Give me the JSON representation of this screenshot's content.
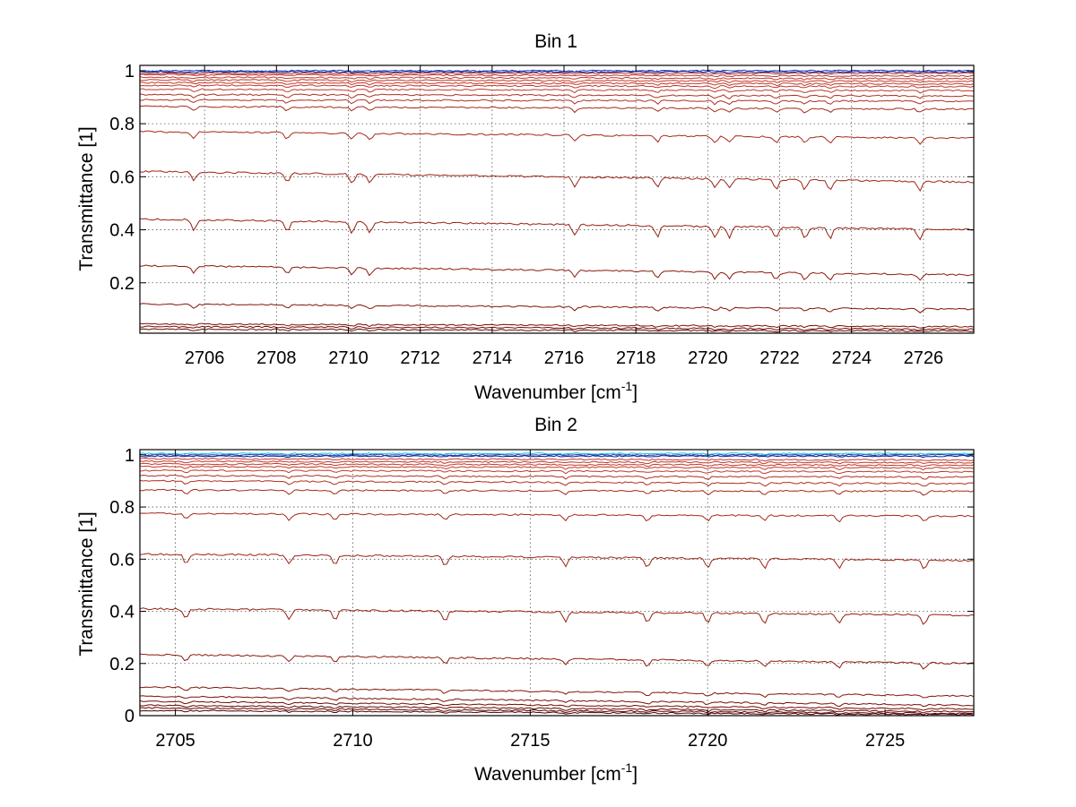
{
  "figure": {
    "panels": [
      {
        "title": "Bin 1",
        "xlabel_main": "Wavenumber [cm",
        "xlabel_sup": "-1",
        "xlabel_end": "]",
        "ylabel": "Transmittance [1]"
      },
      {
        "title": "Bin 2",
        "xlabel_main": "Wavenumber [cm",
        "xlabel_sup": "-1",
        "xlabel_end": "]",
        "ylabel": "Transmittance [1]"
      }
    ]
  },
  "chart_data": [
    {
      "type": "line",
      "title": "Bin 1",
      "xlabel": "Wavenumber [cm^-1]",
      "ylabel": "Transmittance [1]",
      "xlim": [
        2704.2,
        2727.4
      ],
      "ylim": [
        0.01,
        1.02
      ],
      "grid": true,
      "xticks": [
        2706,
        2708,
        2710,
        2712,
        2714,
        2716,
        2718,
        2720,
        2722,
        2724,
        2726
      ],
      "xtick_labels": [
        "2706",
        "2708",
        "2710",
        "2712",
        "2714",
        "2716",
        "2718",
        "2720",
        "2722",
        "2724",
        "2726"
      ],
      "yticks": [
        0.2,
        0.4,
        0.6,
        0.8,
        1
      ],
      "ytick_labels": [
        "0.2",
        "0.4",
        "0.6",
        "0.8",
        "1"
      ],
      "absorption_lines": [
        2705.7,
        2708.3,
        2710.1,
        2710.6,
        2716.3,
        2718.6,
        2720.2,
        2720.6,
        2721.9,
        2722.7,
        2723.4,
        2725.9
      ],
      "series": [
        {
          "values": [
            1.0,
            1.0
          ],
          "color": "#1f3fbf"
        },
        {
          "values": [
            0.995,
            0.995
          ],
          "color": "#0a1a99"
        },
        {
          "values": [
            0.99,
            0.99
          ],
          "color": "#c0392b"
        },
        {
          "values": [
            0.985,
            0.98
          ],
          "color": "#c0392b"
        },
        {
          "values": [
            0.975,
            0.97
          ],
          "color": "#c0392b"
        },
        {
          "values": [
            0.965,
            0.96
          ],
          "color": "#c0392b"
        },
        {
          "values": [
            0.955,
            0.95
          ],
          "color": "#c0392b"
        },
        {
          "values": [
            0.945,
            0.94
          ],
          "color": "#c0392b"
        },
        {
          "values": [
            0.93,
            0.925
          ],
          "color": "#c0392b"
        },
        {
          "values": [
            0.91,
            0.905
          ],
          "color": "#b03020"
        },
        {
          "values": [
            0.89,
            0.885
          ],
          "color": "#b03020"
        },
        {
          "values": [
            0.865,
            0.855
          ],
          "color": "#a52a1a"
        },
        {
          "values": [
            0.77,
            0.745
          ],
          "color": "#a52a1a"
        },
        {
          "values": [
            0.62,
            0.58
          ],
          "color": "#9c2415"
        },
        {
          "values": [
            0.44,
            0.4
          ],
          "color": "#942010"
        },
        {
          "values": [
            0.265,
            0.23
          ],
          "color": "#8b1a0c"
        },
        {
          "values": [
            0.12,
            0.1
          ],
          "color": "#821508"
        },
        {
          "values": [
            0.045,
            0.035
          ],
          "color": "#7a1005"
        },
        {
          "values": [
            0.035,
            0.025
          ],
          "color": "#700b03"
        },
        {
          "values": [
            0.025,
            0.018
          ],
          "color": "#650500"
        }
      ]
    },
    {
      "type": "line",
      "title": "Bin 2",
      "xlabel": "Wavenumber [cm^-1]",
      "ylabel": "Transmittance [1]",
      "xlim": [
        2704.0,
        2727.5
      ],
      "ylim": [
        0,
        1.02
      ],
      "grid": true,
      "xticks": [
        2705,
        2710,
        2715,
        2720,
        2725
      ],
      "xtick_labels": [
        "2705",
        "2710",
        "2715",
        "2720",
        "2725"
      ],
      "yticks": [
        0,
        0.2,
        0.4,
        0.6,
        0.8,
        1
      ],
      "ytick_labels": [
        "0",
        "0.2",
        "0.4",
        "0.6",
        "0.8",
        "1"
      ],
      "absorption_lines": [
        2705.3,
        2708.2,
        2709.5,
        2712.6,
        2716.0,
        2718.3,
        2720.0,
        2721.6,
        2723.7,
        2726.1
      ],
      "series": [
        {
          "values": [
            1.005,
            1.005
          ],
          "color": "#19c0d8"
        },
        {
          "values": [
            1.0,
            1.0
          ],
          "color": "#1f3fbf"
        },
        {
          "values": [
            0.995,
            0.995
          ],
          "color": "#0a1a99"
        },
        {
          "values": [
            0.985,
            0.98
          ],
          "color": "#c0392b"
        },
        {
          "values": [
            0.975,
            0.97
          ],
          "color": "#c0392b"
        },
        {
          "values": [
            0.965,
            0.96
          ],
          "color": "#c0392b"
        },
        {
          "values": [
            0.955,
            0.95
          ],
          "color": "#c0392b"
        },
        {
          "values": [
            0.94,
            0.935
          ],
          "color": "#c0392b"
        },
        {
          "values": [
            0.92,
            0.915
          ],
          "color": "#b03020"
        },
        {
          "values": [
            0.9,
            0.89
          ],
          "color": "#b03020"
        },
        {
          "values": [
            0.865,
            0.86
          ],
          "color": "#a52a1a"
        },
        {
          "values": [
            0.775,
            0.765
          ],
          "color": "#a52a1a"
        },
        {
          "values": [
            0.62,
            0.595
          ],
          "color": "#9c2415"
        },
        {
          "values": [
            0.41,
            0.385
          ],
          "color": "#942010"
        },
        {
          "values": [
            0.235,
            0.2
          ],
          "color": "#8b1a0c"
        },
        {
          "values": [
            0.11,
            0.075
          ],
          "color": "#821508"
        },
        {
          "values": [
            0.075,
            0.04
          ],
          "color": "#7a1005"
        },
        {
          "values": [
            0.055,
            0.025
          ],
          "color": "#700b03"
        },
        {
          "values": [
            0.04,
            0.015
          ],
          "color": "#650500"
        },
        {
          "values": [
            0.03,
            0.008
          ],
          "color": "#5c0000"
        },
        {
          "values": [
            0.02,
            0.004
          ],
          "color": "#520000"
        }
      ]
    }
  ]
}
